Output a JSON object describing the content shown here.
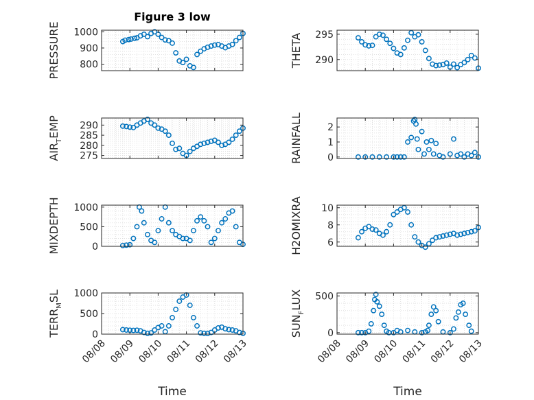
{
  "figure": {
    "title": "Figure 3 low",
    "xlabel": "Time",
    "x_tick_labels": [
      "08/08",
      "08/09",
      "08/10",
      "08/11",
      "08/12",
      "08/13"
    ]
  },
  "style": {
    "marker_color": "#0072bd",
    "axis_color": "#262626",
    "grid_color": "#d9d9d9",
    "grid": "dotted"
  },
  "chart_data": [
    {
      "type": "scatter",
      "marker": "circle-open",
      "ylabel": {
        "main": "PRESSURE",
        "sub": "",
        "rest": ""
      },
      "xlim": [
        "08/08",
        "08/13"
      ],
      "ylim": [
        760,
        1010
      ],
      "yticks": [
        800,
        900,
        1000
      ],
      "x": [
        "08/08 18:00",
        "08/08 20:00",
        "08/08 23:00",
        "08/09 01:00",
        "08/09 04:00",
        "08/09 06:00",
        "08/09 09:00",
        "08/09 12:00",
        "08/09 15:00",
        "08/09 18:00",
        "08/09 21:00",
        "08/10 00:00",
        "08/10 03:00",
        "08/10 06:00",
        "08/10 09:00",
        "08/10 12:00",
        "08/10 15:00",
        "08/10 18:00",
        "08/10 21:00",
        "08/11 00:00",
        "08/11 03:00",
        "08/11 06:00",
        "08/11 09:00",
        "08/11 12:00",
        "08/11 15:00",
        "08/11 18:00",
        "08/11 21:00",
        "08/12 00:00",
        "08/12 03:00",
        "08/12 06:00",
        "08/12 09:00",
        "08/12 12:00",
        "08/12 15:00",
        "08/12 18:00",
        "08/12 21:00",
        "08/13 00:00"
      ],
      "y": [
        940,
        948,
        952,
        955,
        960,
        963,
        975,
        985,
        970,
        990,
        1000,
        985,
        965,
        950,
        945,
        930,
        870,
        820,
        810,
        830,
        790,
        780,
        860,
        880,
        895,
        905,
        912,
        918,
        921,
        912,
        902,
        912,
        922,
        945,
        965,
        990
      ]
    },
    {
      "type": "scatter",
      "marker": "circle-open",
      "ylabel": {
        "main": "THETA",
        "sub": "",
        "rest": ""
      },
      "xlim": [
        "08/08",
        "08/13"
      ],
      "ylim": [
        287.8,
        295.8
      ],
      "yticks": [
        290,
        295
      ],
      "x": [
        "08/08 18:00",
        "08/08 21:00",
        "08/09 00:00",
        "08/09 03:00",
        "08/09 06:00",
        "08/09 09:00",
        "08/09 12:00",
        "08/09 15:00",
        "08/09 18:00",
        "08/09 21:00",
        "08/10 00:00",
        "08/10 03:00",
        "08/10 06:00",
        "08/10 09:00",
        "08/10 12:00",
        "08/10 15:00",
        "08/10 18:00",
        "08/10 21:00",
        "08/11 00:00",
        "08/11 03:00",
        "08/11 06:00",
        "08/11 09:00",
        "08/11 12:00",
        "08/11 15:00",
        "08/11 18:00",
        "08/11 21:00",
        "08/12 00:00",
        "08/12 03:00",
        "08/12 06:00",
        "08/12 09:00",
        "08/12 12:00",
        "08/12 15:00",
        "08/12 18:00",
        "08/12 21:00",
        "08/13 00:00"
      ],
      "y": [
        294.3,
        293.5,
        292.9,
        292.7,
        292.8,
        294.5,
        295.0,
        294.8,
        294.0,
        293.2,
        292.2,
        291.3,
        291.0,
        292.3,
        293.8,
        295.3,
        294.5,
        294.9,
        293.5,
        291.8,
        290.2,
        289.1,
        288.8,
        288.9,
        289.0,
        289.3,
        288.5,
        289.1,
        288.4,
        289.0,
        289.4,
        290.0,
        290.8,
        290.3,
        288.3
      ]
    },
    {
      "type": "scatter",
      "marker": "circle-open",
      "ylabel": {
        "main": "AIR",
        "sub": "T",
        "rest": "EMP"
      },
      "xlim": [
        "08/08",
        "08/13"
      ],
      "ylim": [
        273.5,
        293.5
      ],
      "yticks": [
        275,
        280,
        285,
        290
      ],
      "x": [
        "08/08 18:00",
        "08/08 21:00",
        "08/09 00:00",
        "08/09 03:00",
        "08/09 06:00",
        "08/09 09:00",
        "08/09 12:00",
        "08/09 15:00",
        "08/09 18:00",
        "08/09 21:00",
        "08/10 00:00",
        "08/10 03:00",
        "08/10 06:00",
        "08/10 09:00",
        "08/10 12:00",
        "08/10 15:00",
        "08/10 18:00",
        "08/10 21:00",
        "08/11 00:00",
        "08/11 03:00",
        "08/11 06:00",
        "08/11 09:00",
        "08/11 12:00",
        "08/11 15:00",
        "08/11 18:00",
        "08/11 21:00",
        "08/12 00:00",
        "08/12 03:00",
        "08/12 06:00",
        "08/12 09:00",
        "08/12 12:00",
        "08/12 15:00",
        "08/12 18:00",
        "08/12 21:00",
        "08/13 00:00"
      ],
      "y": [
        289.5,
        289.3,
        289.0,
        288.8,
        290.0,
        291.0,
        292.0,
        292.8,
        291.0,
        290.0,
        288.5,
        288.0,
        287.0,
        285.0,
        281.0,
        278.0,
        278.5,
        276.0,
        275.0,
        277.0,
        278.5,
        279.5,
        280.5,
        281.0,
        281.5,
        282.0,
        282.5,
        281.5,
        280.0,
        280.5,
        281.5,
        283.0,
        285.0,
        287.0,
        288.5
      ]
    },
    {
      "type": "scatter",
      "marker": "circle-open",
      "ylabel": {
        "main": "RAINFALL",
        "sub": "",
        "rest": ""
      },
      "xlim": [
        "08/08",
        "08/13"
      ],
      "ylim": [
        -0.1,
        2.6
      ],
      "yticks": [
        0,
        1,
        2
      ],
      "x": [
        "08/08 18:00",
        "08/09 00:00",
        "08/09 06:00",
        "08/09 12:00",
        "08/09 18:00",
        "08/10 00:00",
        "08/10 03:00",
        "08/10 06:00",
        "08/10 09:00",
        "08/10 12:00",
        "08/10 15:00",
        "08/10 17:00",
        "08/10 18:00",
        "08/10 19:00",
        "08/10 20:00",
        "08/10 21:00",
        "08/11 00:00",
        "08/11 02:00",
        "08/11 04:00",
        "08/11 06:00",
        "08/11 08:00",
        "08/11 10:00",
        "08/11 12:00",
        "08/11 15:00",
        "08/11 18:00",
        "08/12 00:00",
        "08/12 03:00",
        "08/12 06:00",
        "08/12 09:00",
        "08/12 12:00",
        "08/12 15:00",
        "08/12 18:00",
        "08/12 21:00",
        "08/13 00:00"
      ],
      "y": [
        0,
        0,
        0,
        0,
        0,
        0,
        0,
        0,
        0,
        1.0,
        1.3,
        2.4,
        2.5,
        2.2,
        1.2,
        0.5,
        1.7,
        0.2,
        1.0,
        0.5,
        1.1,
        0.2,
        0.9,
        0.1,
        0,
        0.2,
        1.2,
        0.1,
        0.2,
        0,
        0.2,
        0.1,
        0.3,
        0
      ]
    },
    {
      "type": "scatter",
      "marker": "circle-open",
      "ylabel": {
        "main": "MIXDEPTH",
        "sub": "",
        "rest": ""
      },
      "xlim": [
        "08/08",
        "08/13"
      ],
      "ylim": [
        0,
        1050
      ],
      "yticks": [
        0,
        500,
        1000
      ],
      "x": [
        "08/08 18:00",
        "08/08 21:00",
        "08/09 00:00",
        "08/09 03:00",
        "08/09 06:00",
        "08/09 08:00",
        "08/09 10:00",
        "08/09 12:00",
        "08/09 15:00",
        "08/09 18:00",
        "08/09 21:00",
        "08/10 00:00",
        "08/10 03:00",
        "08/10 06:00",
        "08/10 09:00",
        "08/10 12:00",
        "08/10 15:00",
        "08/10 18:00",
        "08/10 21:00",
        "08/11 00:00",
        "08/11 03:00",
        "08/11 06:00",
        "08/11 09:00",
        "08/11 12:00",
        "08/11 15:00",
        "08/11 18:00",
        "08/11 21:00",
        "08/12 00:00",
        "08/12 03:00",
        "08/12 06:00",
        "08/12 09:00",
        "08/12 12:00",
        "08/12 15:00",
        "08/12 18:00",
        "08/12 21:00",
        "08/13 00:00"
      ],
      "y": [
        20,
        30,
        40,
        200,
        500,
        1000,
        900,
        600,
        300,
        150,
        100,
        400,
        700,
        1000,
        600,
        400,
        300,
        250,
        200,
        200,
        150,
        400,
        650,
        750,
        650,
        500,
        100,
        200,
        400,
        600,
        700,
        850,
        900,
        500,
        100,
        50
      ]
    },
    {
      "type": "scatter",
      "marker": "circle-open",
      "ylabel": {
        "main": "H2OMIXRA",
        "sub": "",
        "rest": ""
      },
      "xlim": [
        "08/08",
        "08/13"
      ],
      "ylim": [
        5.5,
        10.3
      ],
      "yticks": [
        6,
        8,
        10
      ],
      "x": [
        "08/08 18:00",
        "08/08 21:00",
        "08/09 00:00",
        "08/09 03:00",
        "08/09 06:00",
        "08/09 09:00",
        "08/09 12:00",
        "08/09 15:00",
        "08/09 18:00",
        "08/09 21:00",
        "08/10 00:00",
        "08/10 03:00",
        "08/10 06:00",
        "08/10 09:00",
        "08/10 12:00",
        "08/10 15:00",
        "08/10 18:00",
        "08/10 21:00",
        "08/11 00:00",
        "08/11 03:00",
        "08/11 06:00",
        "08/11 09:00",
        "08/11 12:00",
        "08/11 15:00",
        "08/11 18:00",
        "08/11 21:00",
        "08/12 00:00",
        "08/12 03:00",
        "08/12 06:00",
        "08/12 09:00",
        "08/12 12:00",
        "08/12 15:00",
        "08/12 18:00",
        "08/12 21:00",
        "08/13 00:00"
      ],
      "y": [
        6.5,
        7.2,
        7.6,
        7.8,
        7.5,
        7.4,
        7.0,
        6.8,
        7.2,
        8.0,
        9.2,
        9.5,
        9.8,
        10.0,
        9.5,
        8.0,
        6.6,
        6.0,
        5.6,
        5.4,
        5.8,
        6.2,
        6.5,
        6.6,
        6.7,
        6.8,
        6.9,
        7.0,
        6.8,
        6.9,
        7.0,
        7.1,
        7.2,
        7.3,
        7.7
      ]
    },
    {
      "type": "scatter",
      "marker": "circle-open",
      "ylabel": {
        "main": "TERR",
        "sub": "M",
        "rest": "SL"
      },
      "xlim": [
        "08/08",
        "08/13"
      ],
      "ylim": [
        0,
        1000
      ],
      "yticks": [
        0,
        500,
        1000
      ],
      "x": [
        "08/08 18:00",
        "08/08 21:00",
        "08/09 00:00",
        "08/09 03:00",
        "08/09 06:00",
        "08/09 09:00",
        "08/09 12:00",
        "08/09 15:00",
        "08/09 18:00",
        "08/09 21:00",
        "08/10 00:00",
        "08/10 03:00",
        "08/10 06:00",
        "08/10 09:00",
        "08/10 12:00",
        "08/10 15:00",
        "08/10 18:00",
        "08/10 21:00",
        "08/11 00:00",
        "08/11 03:00",
        "08/11 06:00",
        "08/11 09:00",
        "08/11 12:00",
        "08/11 15:00",
        "08/11 18:00",
        "08/11 21:00",
        "08/12 00:00",
        "08/12 03:00",
        "08/12 06:00",
        "08/12 09:00",
        "08/12 12:00",
        "08/12 15:00",
        "08/12 18:00",
        "08/12 21:00",
        "08/13 00:00"
      ],
      "y": [
        110,
        100,
        95,
        90,
        95,
        80,
        40,
        20,
        30,
        100,
        160,
        200,
        60,
        200,
        400,
        600,
        800,
        900,
        950,
        700,
        400,
        200,
        30,
        20,
        15,
        40,
        100,
        150,
        170,
        130,
        110,
        100,
        80,
        40,
        20
      ]
    },
    {
      "type": "scatter",
      "marker": "circle-open",
      "ylabel": {
        "main": "SUN",
        "sub": "F",
        "rest": "LUX"
      },
      "xlim": [
        "08/08",
        "08/13"
      ],
      "ylim": [
        -20,
        540
      ],
      "yticks": [
        0,
        500
      ],
      "x": [
        "08/08 18:00",
        "08/08 21:00",
        "08/09 00:00",
        "08/09 03:00",
        "08/09 05:00",
        "08/09 07:00",
        "08/09 08:00",
        "08/09 09:00",
        "08/09 10:00",
        "08/09 12:00",
        "08/09 14:00",
        "08/09 16:00",
        "08/09 18:00",
        "08/09 20:00",
        "08/10 00:00",
        "08/10 03:00",
        "08/10 06:00",
        "08/10 12:00",
        "08/10 18:00",
        "08/11 00:00",
        "08/11 03:00",
        "08/11 05:00",
        "08/11 06:00",
        "08/11 08:00",
        "08/11 10:00",
        "08/11 12:00",
        "08/11 14:00",
        "08/11 18:00",
        "08/12 00:00",
        "08/12 03:00",
        "08/12 05:00",
        "08/12 07:00",
        "08/12 09:00",
        "08/12 11:00",
        "08/12 13:00",
        "08/12 16:00",
        "08/12 18:00"
      ],
      "y": [
        0,
        0,
        0,
        20,
        120,
        300,
        450,
        520,
        420,
        360,
        250,
        100,
        20,
        0,
        0,
        30,
        10,
        30,
        10,
        0,
        10,
        30,
        100,
        250,
        350,
        300,
        150,
        10,
        0,
        50,
        200,
        280,
        380,
        400,
        250,
        100,
        20
      ]
    }
  ]
}
